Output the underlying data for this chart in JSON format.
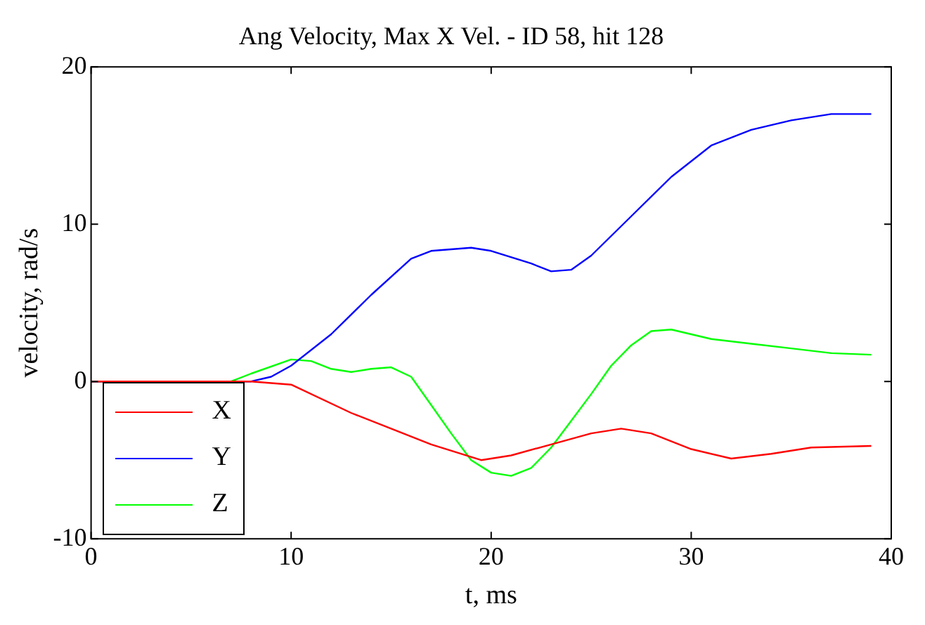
{
  "chart_data": {
    "type": "line",
    "title": "Ang Velocity, Max X Vel. - ID 58, hit 128",
    "xlabel": "t, ms",
    "ylabel": "velocity, rad/s",
    "xlim": [
      0,
      40
    ],
    "ylim": [
      -10,
      20
    ],
    "xticks": [
      0,
      10,
      20,
      30,
      40
    ],
    "yticks": [
      -10,
      0,
      10,
      20
    ],
    "grid": false,
    "legend": "bottom left",
    "marker": "none",
    "line_style": "solid",
    "series": [
      {
        "name": "X",
        "color": "#ff0000",
        "x": [
          0,
          8,
          10,
          13,
          15,
          17,
          19.5,
          21,
          23,
          25,
          26.5,
          28,
          30,
          32,
          34,
          36,
          39
        ],
        "values": [
          0,
          0,
          -0.2,
          -2,
          -3,
          -4,
          -5,
          -4.7,
          -4,
          -3.3,
          -3,
          -3.3,
          -4.3,
          -4.9,
          -4.6,
          -4.2,
          -4.1
        ]
      },
      {
        "name": "Y",
        "color": "#0000ff",
        "x": [
          0,
          8,
          9,
          10,
          12,
          14,
          16,
          17,
          19,
          20,
          22,
          23,
          24,
          25,
          27,
          29,
          31,
          33,
          35,
          37,
          39
        ],
        "values": [
          0,
          0,
          0.3,
          1,
          3,
          5.5,
          7.8,
          8.3,
          8.5,
          8.3,
          7.5,
          7,
          7.1,
          8,
          10.5,
          13,
          15,
          16,
          16.6,
          17,
          17
        ]
      },
      {
        "name": "Z",
        "color": "#00ff00",
        "x": [
          0,
          7,
          8,
          10,
          11,
          12,
          13,
          14,
          15,
          16,
          17,
          18,
          19,
          20,
          21,
          22,
          23,
          24,
          25,
          26,
          27,
          28,
          29,
          30,
          31,
          33,
          35,
          37,
          39
        ],
        "values": [
          0,
          0,
          0.5,
          1.4,
          1.3,
          0.8,
          0.6,
          0.8,
          0.9,
          0.3,
          -1.5,
          -3.3,
          -5,
          -5.8,
          -6,
          -5.5,
          -4.2,
          -2.5,
          -0.8,
          1,
          2.3,
          3.2,
          3.3,
          3,
          2.7,
          2.4,
          2.1,
          1.8,
          1.7
        ]
      }
    ]
  }
}
